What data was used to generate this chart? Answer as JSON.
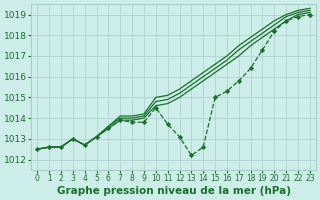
{
  "xlabel": "Graphe pression niveau de la mer (hPa)",
  "background_color": "#cdeee8",
  "grid_color": "#aacccc",
  "line_color": "#1a6e2e",
  "text_color": "#1a6e2e",
  "ylim": [
    1011.5,
    1019.5
  ],
  "xlim": [
    -0.5,
    23.5
  ],
  "yticks": [
    1012,
    1013,
    1014,
    1015,
    1016,
    1017,
    1018,
    1019
  ],
  "xticks": [
    0,
    1,
    2,
    3,
    4,
    5,
    6,
    7,
    8,
    9,
    10,
    11,
    12,
    13,
    14,
    15,
    16,
    17,
    18,
    19,
    20,
    21,
    22,
    23
  ],
  "smooth_lines": [
    [
      1012.5,
      1012.6,
      1012.6,
      1013.0,
      1012.7,
      1013.1,
      1013.5,
      1013.9,
      1013.9,
      1014.0,
      1014.6,
      1014.7,
      1015.0,
      1015.4,
      1015.8,
      1016.2,
      1016.6,
      1017.0,
      1017.5,
      1017.9,
      1018.3,
      1018.7,
      1019.0,
      1019.1
    ],
    [
      1012.5,
      1012.6,
      1012.6,
      1013.0,
      1012.7,
      1013.1,
      1013.6,
      1014.0,
      1014.0,
      1014.1,
      1014.8,
      1014.9,
      1015.2,
      1015.6,
      1016.0,
      1016.4,
      1016.8,
      1017.3,
      1017.7,
      1018.1,
      1018.5,
      1018.9,
      1019.1,
      1019.2
    ],
    [
      1012.5,
      1012.6,
      1012.6,
      1013.0,
      1012.7,
      1013.1,
      1013.6,
      1014.1,
      1014.1,
      1014.2,
      1015.0,
      1015.1,
      1015.4,
      1015.8,
      1016.2,
      1016.6,
      1017.0,
      1017.5,
      1017.9,
      1018.3,
      1018.7,
      1019.0,
      1019.2,
      1019.3
    ]
  ],
  "marker_line": [
    1012.5,
    1012.6,
    1012.6,
    1013.0,
    1012.7,
    1013.1,
    1013.5,
    1013.9,
    1013.8,
    1013.8,
    1014.5,
    1013.7,
    1013.1,
    1012.2,
    1012.6,
    1015.0,
    1015.3,
    1015.8,
    1016.4,
    1017.3,
    1018.2,
    1018.7,
    1018.9,
    1019.0
  ],
  "xlabel_fontsize": 7.5,
  "ytick_fontsize": 6.5,
  "xtick_fontsize": 5.5
}
